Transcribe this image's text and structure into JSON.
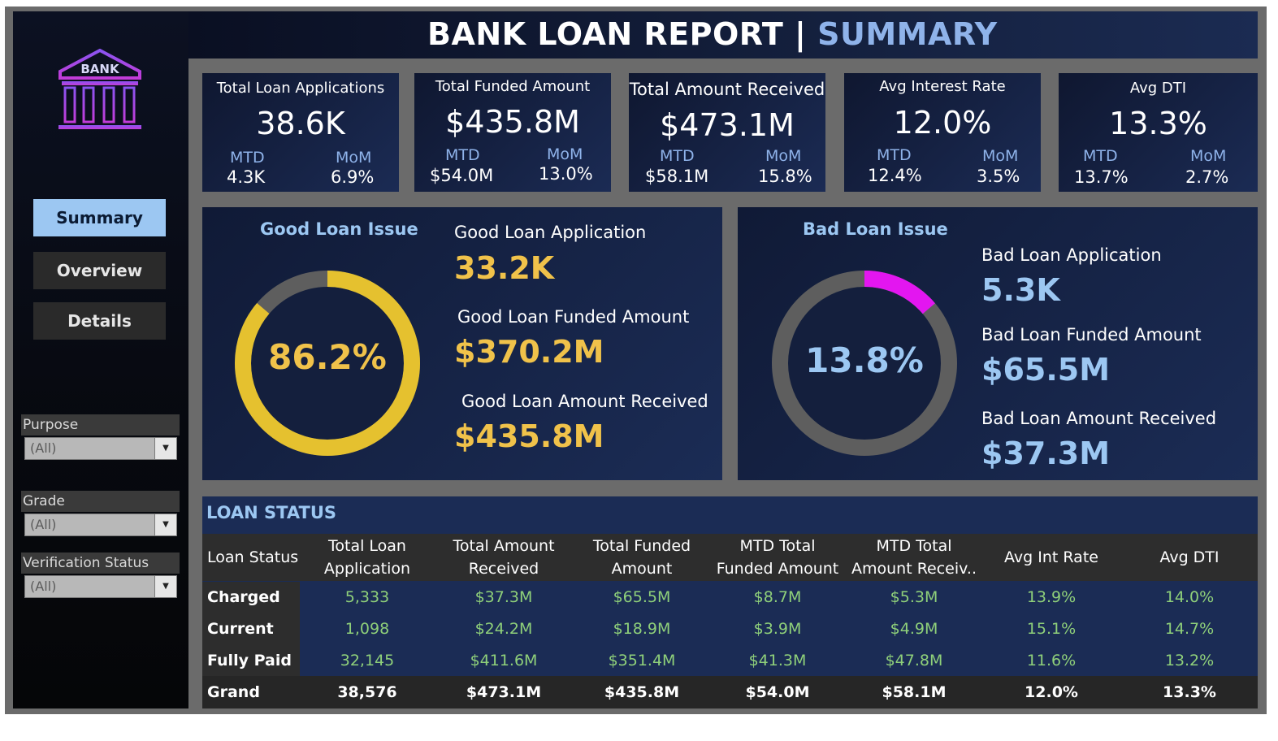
{
  "title": {
    "main": "BANK LOAN REPORT | ",
    "accent": "SUMMARY"
  },
  "logo_text": "BANK",
  "nav": [
    {
      "label": "Summary",
      "active": true
    },
    {
      "label": "Overview",
      "active": false
    },
    {
      "label": "Details",
      "active": false
    }
  ],
  "filters": [
    {
      "label": "Purpose",
      "value": "(All)"
    },
    {
      "label": "Grade",
      "value": "(All)"
    },
    {
      "label": "Verification Status",
      "value": "(All)"
    }
  ],
  "kpis": [
    {
      "label": "Total Loan Applications",
      "value": "38.6K",
      "mtd_label": "MTD",
      "mtd": "4.3K",
      "mom_label": "MoM",
      "mom": "6.9%"
    },
    {
      "label": "Total Funded Amount",
      "value": "$435.8M",
      "mtd_label": "MTD",
      "mtd": "$54.0M",
      "mom_label": "MoM",
      "mom": "13.0%"
    },
    {
      "label": "Total Amount Received",
      "value": "$473.1M",
      "mtd_label": "MTD",
      "mtd": "$58.1M",
      "mom_label": "MoM",
      "mom": "15.8%"
    },
    {
      "label": "Avg Interest Rate",
      "value": "12.0%",
      "mtd_label": "MTD",
      "mtd": "12.4%",
      "mom_label": "MoM",
      "mom": "3.5%"
    },
    {
      "label": "Avg DTI",
      "value": "13.3%",
      "mtd_label": "MTD",
      "mtd": "13.7%",
      "mom_label": "MoM",
      "mom": "2.7%"
    }
  ],
  "good_loan": {
    "title": "Good Loan Issue",
    "percent": "86.2%",
    "fraction": 0.862,
    "color": "#e5c12f",
    "track_color": "#5e5e5e",
    "application_label": "Good Loan Application",
    "application_value": "33.2K",
    "funded_label": "Good Loan Funded Amount",
    "funded_value": "$370.2M",
    "received_label": "Good Loan Amount Received",
    "received_value": "$435.8M"
  },
  "bad_loan": {
    "title": "Bad Loan Issue",
    "percent": "13.8%",
    "fraction": 0.138,
    "color": "#e316f0",
    "track_color": "#5e5e5e",
    "application_label": "Bad Loan Application",
    "application_value": "5.3K",
    "funded_label": "Bad Loan Funded Amount",
    "funded_value": "$65.5M",
    "received_label": "Bad Loan Amount Received",
    "received_value": "$37.3M"
  },
  "loan_status": {
    "title": "LOAN STATUS",
    "headers": [
      "Loan Status",
      "Total Loan Application",
      "Total Amount Received",
      "Total Funded Amount",
      "MTD Total Funded Amount",
      "MTD Total Amount Receiv..",
      "Avg Int Rate",
      "Avg DTI"
    ],
    "rows": [
      {
        "status": "Charged Off",
        "cells": [
          "5,333",
          "$37.3M",
          "$65.5M",
          "$8.7M",
          "$5.3M",
          "13.9%",
          "14.0%"
        ]
      },
      {
        "status": "Current",
        "cells": [
          "1,098",
          "$24.2M",
          "$18.9M",
          "$3.9M",
          "$4.9M",
          "15.1%",
          "14.7%"
        ]
      },
      {
        "status": "Fully Paid",
        "cells": [
          "32,145",
          "$411.6M",
          "$351.4M",
          "$41.3M",
          "$47.8M",
          "11.6%",
          "13.2%"
        ]
      }
    ],
    "total": {
      "status": "Grand Total",
      "cells": [
        "38,576",
        "$473.1M",
        "$435.8M",
        "$54.0M",
        "$58.1M",
        "12.0%",
        "13.3%"
      ]
    }
  }
}
